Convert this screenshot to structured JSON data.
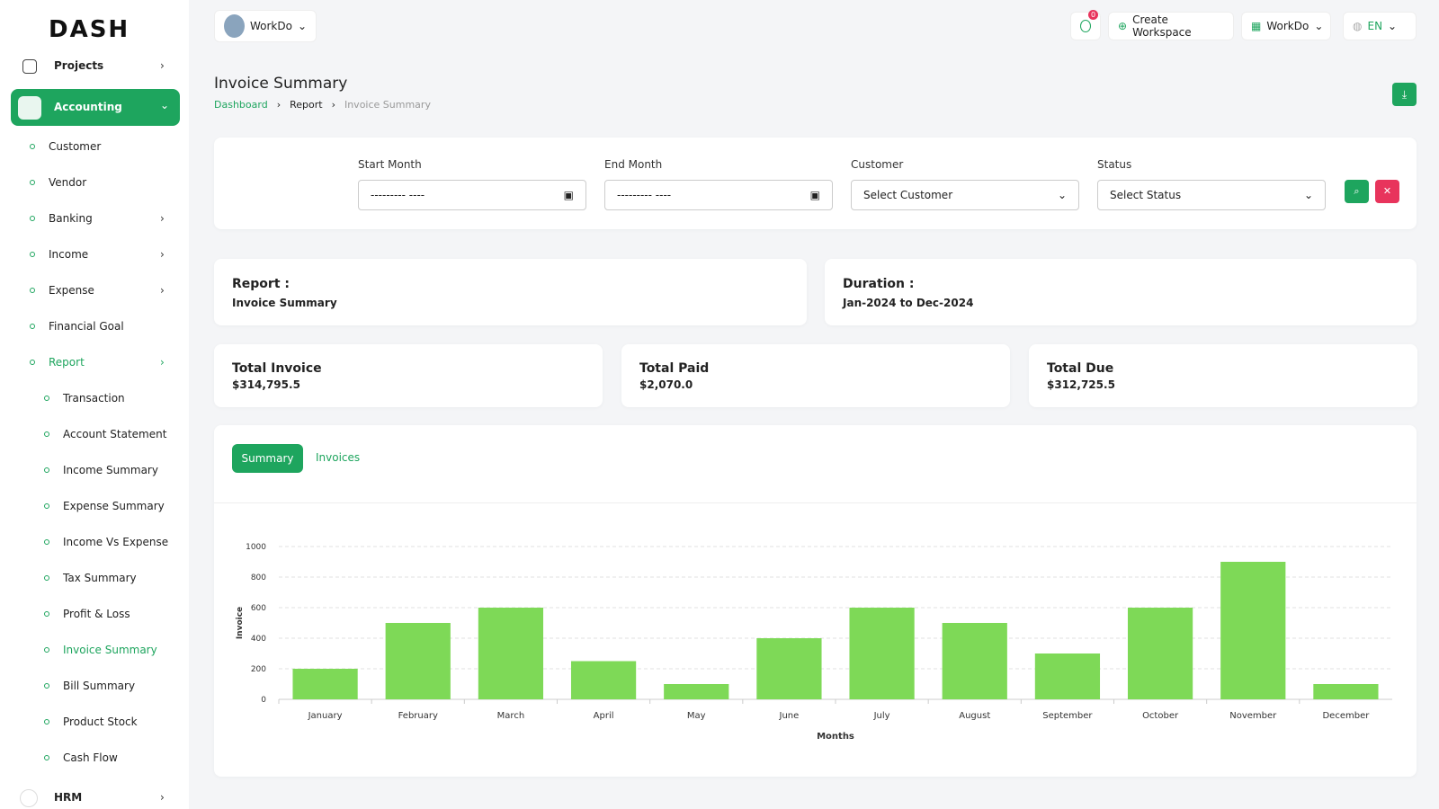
{
  "logo": "DASH",
  "topbar": {
    "workspace": "WorkDo",
    "notifications": 0,
    "create_workspace": "Create Workspace",
    "user": "WorkDo",
    "language": "EN"
  },
  "sidebar": {
    "projects": "Projects",
    "accounting": "Accounting",
    "items": [
      "Customer",
      "Vendor",
      "Banking",
      "Income",
      "Expense",
      "Financial Goal",
      "Report"
    ],
    "report_items": [
      "Transaction",
      "Account Statement",
      "Income Summary",
      "Expense Summary",
      "Income Vs Expense",
      "Tax Summary",
      "Profit & Loss",
      "Invoice Summary",
      "Bill Summary",
      "Product Stock",
      "Cash Flow"
    ],
    "hrm": "HRM"
  },
  "header": {
    "title": "Invoice Summary",
    "breadcrumb": [
      "Dashboard",
      "Report",
      "Invoice Summary"
    ]
  },
  "filters": {
    "start_month": {
      "label": "Start Month",
      "placeholder": "--------- ----"
    },
    "end_month": {
      "label": "End Month",
      "placeholder": "--------- ----"
    },
    "customer": {
      "label": "Customer",
      "placeholder": "Select Customer"
    },
    "status": {
      "label": "Status",
      "placeholder": "Select Status"
    }
  },
  "report": {
    "label": "Report :",
    "value": "Invoice Summary"
  },
  "duration": {
    "label": "Duration :",
    "value": "Jan-2024 to Dec-2024"
  },
  "totals": [
    {
      "label": "Total Invoice",
      "value": "$314,795.5"
    },
    {
      "label": "Total Paid",
      "value": "$2,070.0"
    },
    {
      "label": "Total Due",
      "value": "$312,725.5"
    }
  ],
  "tabs": [
    "Summary",
    "Invoices"
  ],
  "chart_data": {
    "type": "bar",
    "x_label": "Months",
    "y_label": "Invoice",
    "categories": [
      "January",
      "February",
      "March",
      "April",
      "May",
      "June",
      "July",
      "August",
      "September",
      "October",
      "November",
      "December"
    ],
    "values": [
      200,
      500,
      600,
      250,
      100,
      400,
      600,
      500,
      300,
      600,
      900,
      100
    ],
    "color": "#7ed957",
    "ylim": [
      0,
      1000
    ],
    "yticks": [
      0,
      200,
      400,
      600,
      800,
      1000
    ],
    "grid": true
  }
}
